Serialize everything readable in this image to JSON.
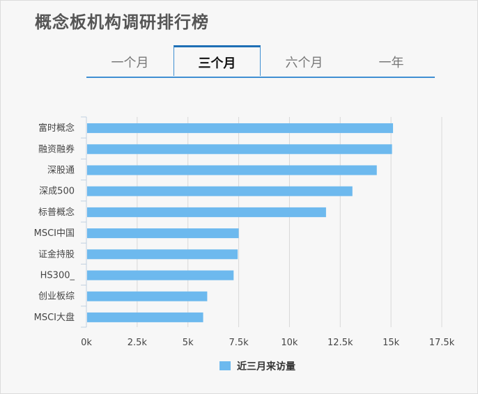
{
  "page": {
    "title": "概念板机构调研排行榜"
  },
  "tabs": [
    {
      "label": "一个月",
      "active": false
    },
    {
      "label": "三个月",
      "active": true
    },
    {
      "label": "六个月",
      "active": false
    },
    {
      "label": "一年",
      "active": false
    }
  ],
  "colors": {
    "bar": "#6db9ee",
    "accent": "#1e6fb5",
    "grid": "#d8d8d8",
    "text": "#444444"
  },
  "chart_data": {
    "type": "bar",
    "orientation": "horizontal",
    "categories": [
      "富时概念",
      "融资融券",
      "深股通",
      "深成500",
      "标普概念",
      "MSCI中国",
      "证金持股",
      "HS300_",
      "创业板综",
      "MSCI大盘"
    ],
    "series": [
      {
        "name": "近三月来访量",
        "values": [
          15100,
          15050,
          14300,
          13100,
          11800,
          7500,
          7450,
          7250,
          5950,
          5750
        ]
      }
    ],
    "xlim": [
      0,
      17500
    ],
    "xticks": [
      0,
      2500,
      5000,
      7500,
      10000,
      12500,
      15000,
      17500
    ],
    "xtick_labels": [
      "0k",
      "2.5k",
      "5k",
      "7.5k",
      "10k",
      "12.5k",
      "15k",
      "17.5k"
    ],
    "grid": true,
    "legend_position": "bottom-center"
  }
}
